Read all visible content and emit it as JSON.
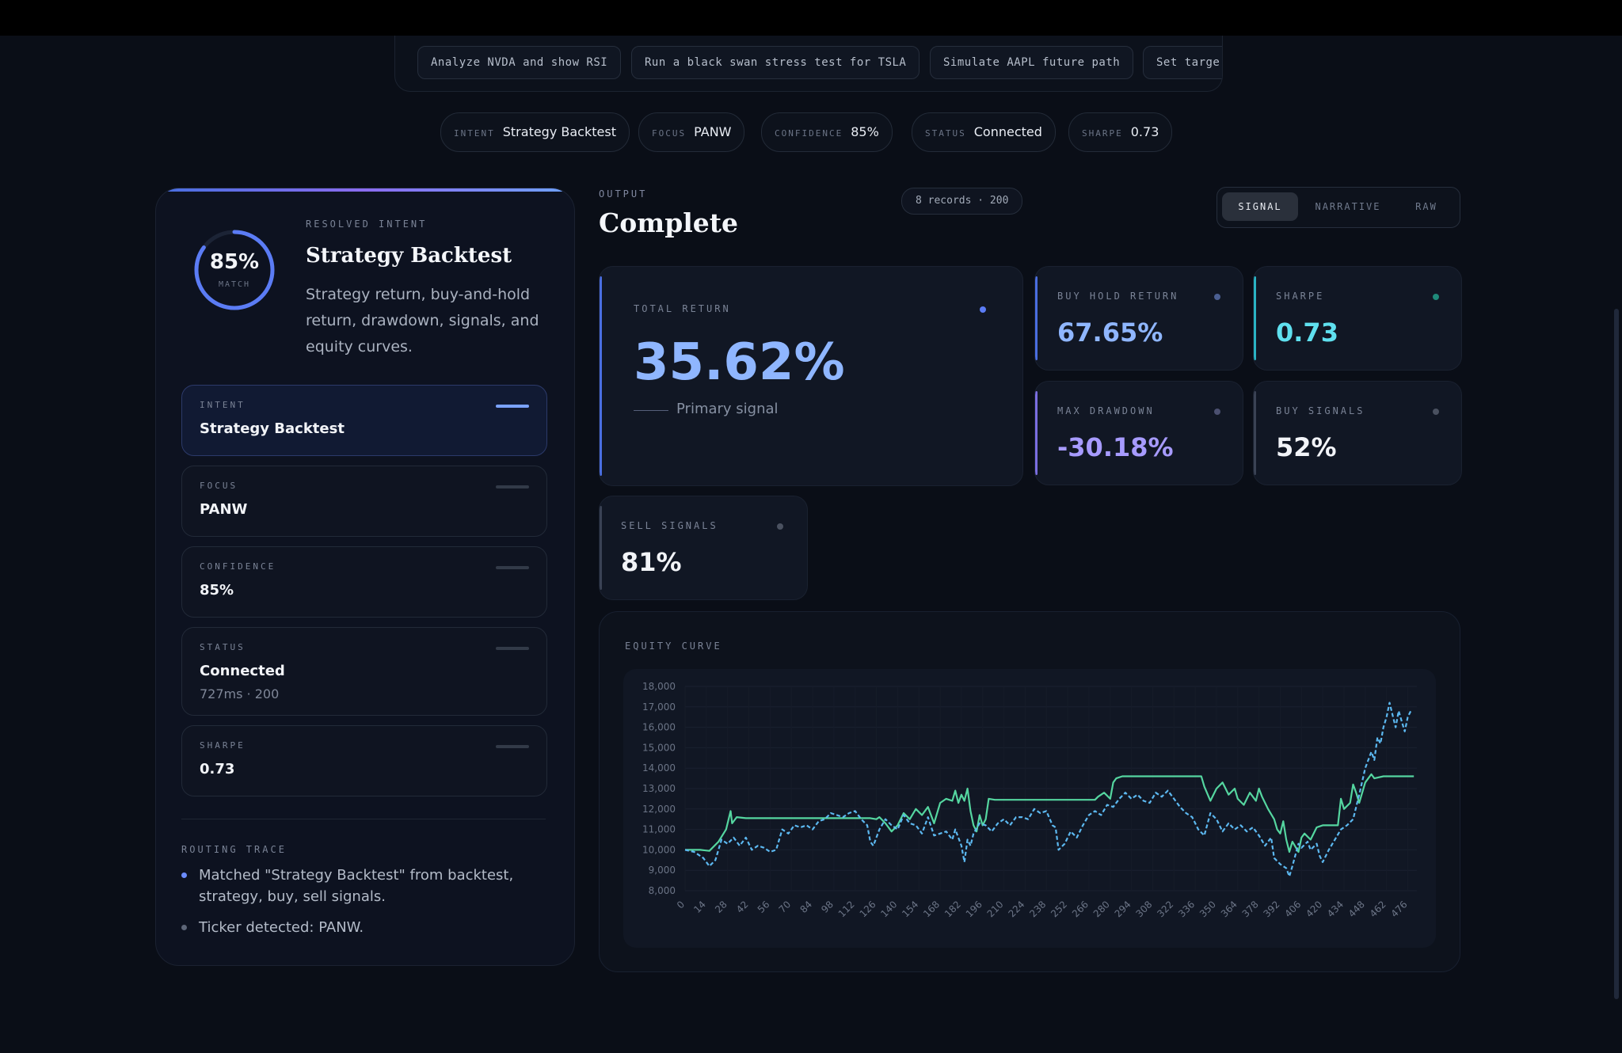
{
  "suggestions": [
    "Analyze NVDA and show RSI",
    "Run a black swan stress test for TSLA",
    "Simulate AAPL future path",
    "Set targe"
  ],
  "chips": [
    {
      "label": "INTENT",
      "value": "Strategy Backtest"
    },
    {
      "label": "FOCUS",
      "value": "PANW"
    },
    {
      "label": "CONFIDENCE",
      "value": "85%"
    },
    {
      "label": "STATUS",
      "value": "Connected"
    },
    {
      "label": "SHARPE",
      "value": "0.73"
    }
  ],
  "left_panel": {
    "match_pct": "85%",
    "match_label": "MATCH",
    "match_fraction": 0.85,
    "resolved_label": "RESOLVED INTENT",
    "resolved_title": "Strategy Backtest",
    "resolved_desc": "Strategy return, buy-and-hold return, drawdown, signals, and equity curves.",
    "rows": [
      {
        "label": "INTENT",
        "value": "Strategy Backtest",
        "sub": ""
      },
      {
        "label": "FOCUS",
        "value": "PANW",
        "sub": ""
      },
      {
        "label": "CONFIDENCE",
        "value": "85%",
        "sub": ""
      },
      {
        "label": "STATUS",
        "value": "Connected",
        "sub": "727ms · 200"
      },
      {
        "label": "SHARPE",
        "value": "0.73",
        "sub": ""
      }
    ],
    "trace_label": "ROUTING TRACE",
    "trace": [
      "Matched \"Strategy Backtest\" from backtest, strategy, buy, sell signals.",
      "Ticker detected: PANW."
    ]
  },
  "output": {
    "label": "OUTPUT",
    "title": "Complete",
    "records": "8 records · 200",
    "tabs": [
      "SIGNAL",
      "NARRATIVE",
      "RAW"
    ],
    "active_tab": "SIGNAL"
  },
  "metrics": {
    "total_return": {
      "label": "TOTAL RETURN",
      "value": "35.62%",
      "caption": "Primary signal"
    },
    "buy_hold_return": {
      "label": "BUY HOLD RETURN",
      "value": "67.65%"
    },
    "sharpe": {
      "label": "SHARPE",
      "value": "0.73"
    },
    "max_drawdown": {
      "label": "MAX DRAWDOWN",
      "value": "-30.18%"
    },
    "buy_signals": {
      "label": "BUY SIGNALS",
      "value": "52%"
    },
    "sell_signals": {
      "label": "SELL SIGNALS",
      "value": "81%"
    }
  },
  "colors": {
    "accent": "#6b8cff",
    "teal": "#5fe0ef",
    "strategy_line": "#55d6a0",
    "buyhold_line": "#5cb8f0",
    "violet": "#a79bff"
  },
  "chart_data": {
    "type": "line",
    "title": "EQUITY CURVE",
    "xlabel": "",
    "ylabel": "",
    "ylim": [
      8000,
      18000
    ],
    "yticks": [
      "18,000",
      "17,000",
      "16,000",
      "15,000",
      "14,000",
      "13,000",
      "12,000",
      "11,000",
      "10,000",
      "9,000",
      "8,000"
    ],
    "xticks": [
      "0",
      "14",
      "28",
      "42",
      "56",
      "70",
      "84",
      "98",
      "112",
      "126",
      "140",
      "154",
      "168",
      "182",
      "196",
      "210",
      "224",
      "238",
      "252",
      "266",
      "280",
      "294",
      "308",
      "322",
      "336",
      "350",
      "364",
      "378",
      "392",
      "406",
      "420",
      "434",
      "448",
      "462",
      "476"
    ],
    "xmax": 482,
    "series": [
      {
        "style": "solid",
        "points": [
          [
            0,
            10000
          ],
          [
            10,
            10000
          ],
          [
            16,
            9950
          ],
          [
            22,
            10400
          ],
          [
            27,
            11000
          ],
          [
            30,
            11900
          ],
          [
            31,
            11300
          ],
          [
            34,
            11600
          ],
          [
            40,
            11550
          ],
          [
            60,
            11550
          ],
          [
            80,
            11550
          ],
          [
            100,
            11550
          ],
          [
            115,
            11550
          ],
          [
            122,
            11550
          ],
          [
            126,
            11500
          ],
          [
            128,
            11600
          ],
          [
            132,
            11300
          ],
          [
            136,
            10900
          ],
          [
            140,
            11200
          ],
          [
            144,
            11800
          ],
          [
            148,
            11500
          ],
          [
            152,
            12000
          ],
          [
            156,
            11700
          ],
          [
            160,
            12100
          ],
          [
            164,
            11300
          ],
          [
            168,
            12300
          ],
          [
            172,
            12500
          ],
          [
            176,
            12400
          ],
          [
            178,
            12900
          ],
          [
            180,
            12300
          ],
          [
            182,
            12700
          ],
          [
            184,
            12400
          ],
          [
            186,
            13000
          ],
          [
            188,
            11900
          ],
          [
            190,
            11200
          ],
          [
            192,
            10900
          ],
          [
            194,
            11700
          ],
          [
            196,
            11200
          ],
          [
            198,
            11500
          ],
          [
            200,
            12500
          ],
          [
            204,
            12450
          ],
          [
            240,
            12450
          ],
          [
            270,
            12450
          ],
          [
            272,
            12600
          ],
          [
            276,
            12800
          ],
          [
            280,
            12500
          ],
          [
            282,
            13300
          ],
          [
            284,
            13500
          ],
          [
            288,
            13600
          ],
          [
            300,
            13600
          ],
          [
            340,
            13600
          ],
          [
            342,
            13100
          ],
          [
            346,
            12400
          ],
          [
            350,
            13000
          ],
          [
            354,
            13300
          ],
          [
            358,
            12700
          ],
          [
            362,
            13000
          ],
          [
            364,
            12500
          ],
          [
            368,
            12200
          ],
          [
            372,
            12800
          ],
          [
            376,
            12400
          ],
          [
            378,
            13000
          ],
          [
            380,
            12600
          ],
          [
            384,
            12000
          ],
          [
            388,
            11500
          ],
          [
            390,
            11000
          ],
          [
            392,
            10800
          ],
          [
            394,
            11400
          ],
          [
            396,
            10500
          ],
          [
            398,
            9900
          ],
          [
            400,
            10400
          ],
          [
            404,
            9900
          ],
          [
            406,
            10600
          ],
          [
            408,
            10800
          ],
          [
            412,
            10500
          ],
          [
            416,
            11100
          ],
          [
            420,
            11200
          ],
          [
            430,
            11200
          ],
          [
            432,
            12500
          ],
          [
            434,
            12000
          ],
          [
            438,
            12300
          ],
          [
            440,
            13200
          ],
          [
            442,
            12800
          ],
          [
            444,
            12300
          ],
          [
            448,
            13300
          ],
          [
            452,
            13700
          ],
          [
            454,
            13500
          ],
          [
            460,
            13600
          ],
          [
            480,
            13600
          ]
        ]
      },
      {
        "style": "dashed",
        "points": [
          [
            0,
            10000
          ],
          [
            6,
            9900
          ],
          [
            12,
            9600
          ],
          [
            16,
            9200
          ],
          [
            20,
            9500
          ],
          [
            24,
            10500
          ],
          [
            28,
            10300
          ],
          [
            32,
            10600
          ],
          [
            36,
            10200
          ],
          [
            40,
            10600
          ],
          [
            44,
            10000
          ],
          [
            48,
            10200
          ],
          [
            52,
            10100
          ],
          [
            56,
            9900
          ],
          [
            60,
            10000
          ],
          [
            64,
            11000
          ],
          [
            68,
            10800
          ],
          [
            72,
            11200
          ],
          [
            76,
            11100
          ],
          [
            80,
            11200
          ],
          [
            84,
            11000
          ],
          [
            88,
            11400
          ],
          [
            92,
            11500
          ],
          [
            96,
            11800
          ],
          [
            100,
            11700
          ],
          [
            104,
            11600
          ],
          [
            108,
            11800
          ],
          [
            112,
            11900
          ],
          [
            116,
            11500
          ],
          [
            120,
            11200
          ],
          [
            122,
            10400
          ],
          [
            124,
            10200
          ],
          [
            128,
            11000
          ],
          [
            132,
            11500
          ],
          [
            136,
            11200
          ],
          [
            140,
            11000
          ],
          [
            144,
            11700
          ],
          [
            148,
            11300
          ],
          [
            152,
            11200
          ],
          [
            156,
            10800
          ],
          [
            160,
            11600
          ],
          [
            164,
            10700
          ],
          [
            168,
            10800
          ],
          [
            172,
            10900
          ],
          [
            176,
            10500
          ],
          [
            178,
            11000
          ],
          [
            182,
            10200
          ],
          [
            184,
            9400
          ],
          [
            186,
            10500
          ],
          [
            188,
            10200
          ],
          [
            190,
            10800
          ],
          [
            194,
            11300
          ],
          [
            198,
            11200
          ],
          [
            202,
            10900
          ],
          [
            206,
            11300
          ],
          [
            210,
            11500
          ],
          [
            214,
            11200
          ],
          [
            218,
            11600
          ],
          [
            222,
            11600
          ],
          [
            226,
            11500
          ],
          [
            230,
            12000
          ],
          [
            234,
            11800
          ],
          [
            238,
            11900
          ],
          [
            242,
            11200
          ],
          [
            244,
            11100
          ],
          [
            246,
            10000
          ],
          [
            250,
            10300
          ],
          [
            254,
            10900
          ],
          [
            258,
            10600
          ],
          [
            262,
            11200
          ],
          [
            266,
            11700
          ],
          [
            270,
            11900
          ],
          [
            274,
            11700
          ],
          [
            278,
            12200
          ],
          [
            282,
            12100
          ],
          [
            286,
            12500
          ],
          [
            290,
            12800
          ],
          [
            294,
            12500
          ],
          [
            298,
            12700
          ],
          [
            302,
            12400
          ],
          [
            306,
            12300
          ],
          [
            310,
            12800
          ],
          [
            314,
            12600
          ],
          [
            318,
            12900
          ],
          [
            322,
            12500
          ],
          [
            326,
            12100
          ],
          [
            330,
            11800
          ],
          [
            334,
            11600
          ],
          [
            338,
            11000
          ],
          [
            342,
            10700
          ],
          [
            346,
            11800
          ],
          [
            350,
            11500
          ],
          [
            354,
            10900
          ],
          [
            358,
            11300
          ],
          [
            362,
            11000
          ],
          [
            366,
            11200
          ],
          [
            370,
            10900
          ],
          [
            374,
            11100
          ],
          [
            378,
            10700
          ],
          [
            382,
            10200
          ],
          [
            386,
            10600
          ],
          [
            388,
            9600
          ],
          [
            392,
            9300
          ],
          [
            396,
            9100
          ],
          [
            398,
            8700
          ],
          [
            400,
            9200
          ],
          [
            404,
            10300
          ],
          [
            406,
            10100
          ],
          [
            410,
            10400
          ],
          [
            412,
            10000
          ],
          [
            416,
            10300
          ],
          [
            418,
            9700
          ],
          [
            420,
            9400
          ],
          [
            424,
            10000
          ],
          [
            428,
            10500
          ],
          [
            432,
            11000
          ],
          [
            436,
            11200
          ],
          [
            440,
            11500
          ],
          [
            444,
            12700
          ],
          [
            448,
            14000
          ],
          [
            452,
            14800
          ],
          [
            454,
            14400
          ],
          [
            456,
            15500
          ],
          [
            458,
            15200
          ],
          [
            460,
            16000
          ],
          [
            462,
            16500
          ],
          [
            464,
            17200
          ],
          [
            466,
            16600
          ],
          [
            468,
            16000
          ],
          [
            470,
            16800
          ],
          [
            472,
            16300
          ],
          [
            474,
            15800
          ],
          [
            476,
            16500
          ],
          [
            478,
            16800
          ]
        ]
      }
    ]
  }
}
